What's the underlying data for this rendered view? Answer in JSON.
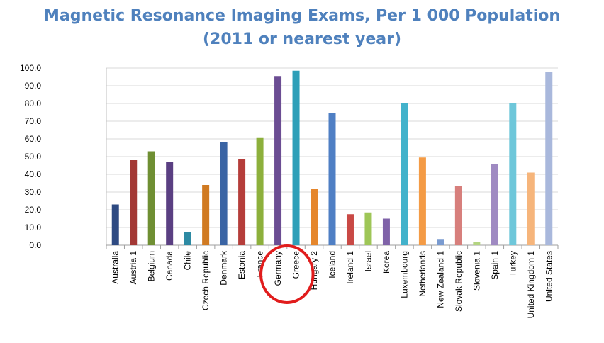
{
  "chart_data": {
    "type": "bar",
    "title_lines": [
      "Magnetic Resonance Imaging Exams, Per 1 000 Population",
      "(2011 or nearest year)"
    ],
    "xlabel": "",
    "ylabel": "",
    "ylim": [
      0,
      100
    ],
    "yticks": [
      0,
      10,
      20,
      30,
      40,
      50,
      60,
      70,
      80,
      90,
      100
    ],
    "ytick_labels": [
      "0.0",
      "10.0",
      "20.0",
      "30.0",
      "40.0",
      "50.0",
      "60.0",
      "70.0",
      "80.0",
      "90.0",
      "100.0"
    ],
    "grid": true,
    "legend": "none",
    "categories": [
      "Australia",
      "Austria 1",
      "Belgium",
      "Canada",
      "Chile",
      "Czech Republic",
      "Denmark",
      "Estonia",
      "France",
      "Germany",
      "Greece",
      "Hungary 2",
      "Iceland",
      "Ireland 1",
      "Israel",
      "Korea",
      "Luxembourg",
      "Netherlands",
      "New Zealand 1",
      "Slovak Republic",
      "Slovenia 1",
      "Spain 1",
      "Turkey",
      "United Kingdom 1",
      "United States"
    ],
    "values": [
      23.0,
      48.0,
      53.0,
      47.0,
      7.5,
      34.0,
      58.0,
      48.5,
      60.5,
      95.5,
      98.5,
      32.0,
      74.5,
      17.5,
      18.5,
      15.0,
      80.0,
      49.5,
      3.5,
      33.5,
      2.0,
      46.0,
      80.0,
      41.0,
      98.0
    ],
    "colors": [
      "#2e4a82",
      "#a33835",
      "#6f8f33",
      "#5a3f82",
      "#2d8aa3",
      "#d07a22",
      "#3a64a4",
      "#b53d3a",
      "#8db03c",
      "#6b4d93",
      "#2e9fb8",
      "#e5862c",
      "#4f7fc4",
      "#c94945",
      "#9ec657",
      "#7f62a8",
      "#42b2cb",
      "#f49b45",
      "#7a9bd0",
      "#d77f7c",
      "#b3d481",
      "#9f8ac2",
      "#6ec7da",
      "#f6b57b",
      "#a9b8dc"
    ],
    "highlighted": [
      "Germany",
      "Greece"
    ],
    "highlight_color": "#e11c1c"
  }
}
